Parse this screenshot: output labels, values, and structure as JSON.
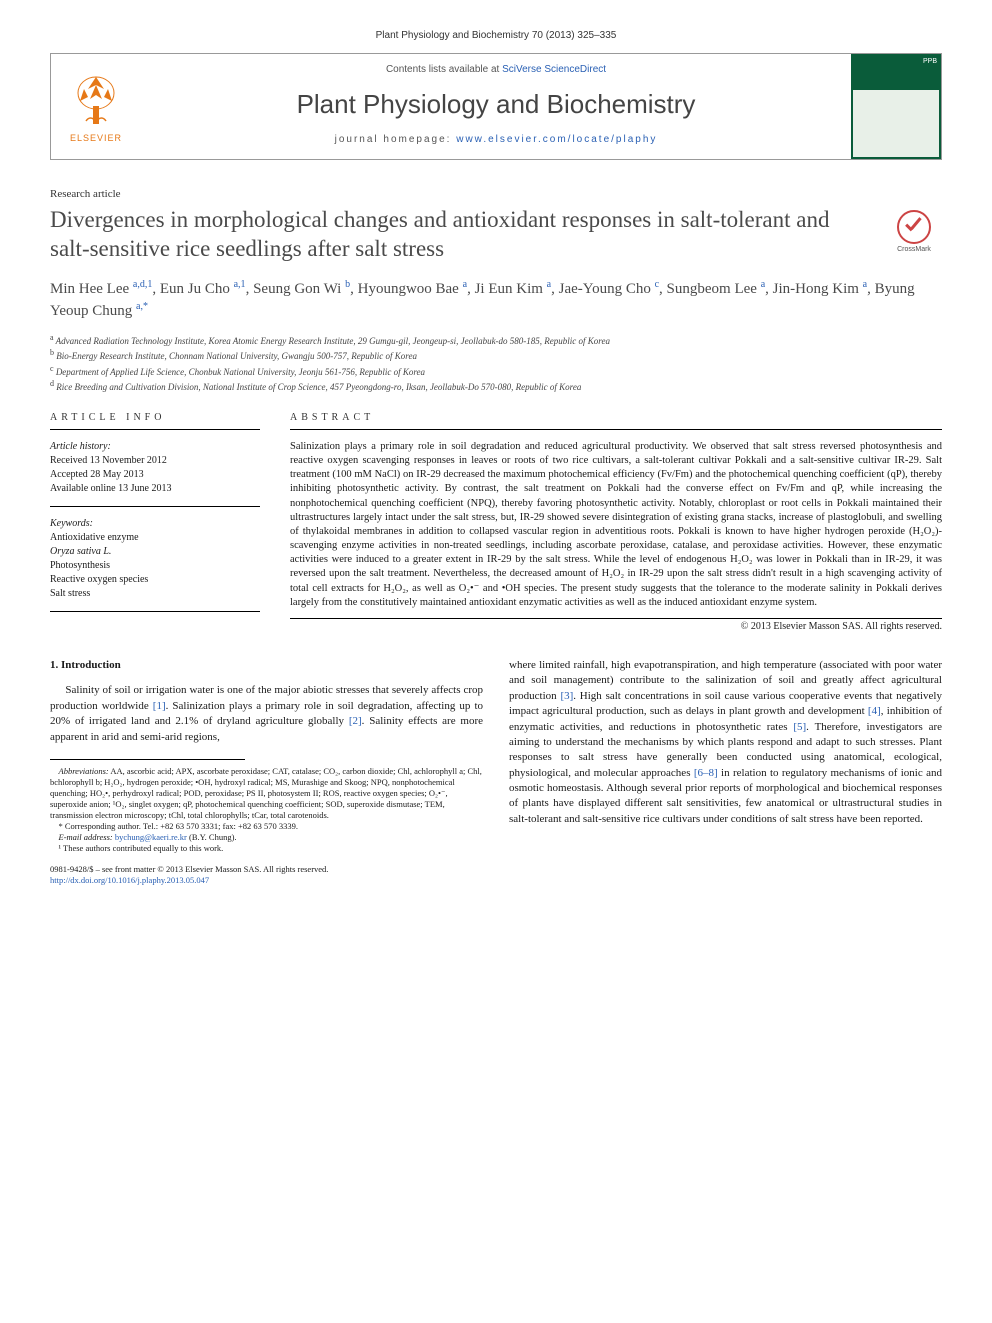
{
  "citation": "Plant Physiology and Biochemistry 70 (2013) 325–335",
  "header": {
    "contents_prefix": "Contents lists available at ",
    "contents_link": "SciVerse ScienceDirect",
    "journal": "Plant Physiology and Biochemistry",
    "homepage_prefix": "journal homepage: ",
    "homepage_url": "www.elsevier.com/locate/plaphy",
    "elsevier": "ELSEVIER",
    "cover_label": "PPB"
  },
  "article_type": "Research article",
  "title": "Divergences in morphological changes and antioxidant responses in salt-tolerant and salt-sensitive rice seedlings after salt stress",
  "crossmark": "CrossMark",
  "authors_html": "Min Hee Lee <sup>a,d,1</sup>, Eun Ju Cho <sup>a,1</sup>, Seung Gon Wi <sup>b</sup>, Hyoungwoo Bae <sup>a</sup>, Ji Eun Kim <sup>a</sup>, Jae-Young Cho <sup>c</sup>, Sungbeom Lee <sup>a</sup>, Jin-Hong Kim <sup>a</sup>, Byung Yeoup Chung <sup>a,*</sup>",
  "affiliations": {
    "a": "Advanced Radiation Technology Institute, Korea Atomic Energy Research Institute, 29 Gumgu-gil, Jeongeup-si, Jeollabuk-do 580-185, Republic of Korea",
    "b": "Bio-Energy Research Institute, Chonnam National University, Gwangju 500-757, Republic of Korea",
    "c": "Department of Applied Life Science, Chonbuk National University, Jeonju 561-756, Republic of Korea",
    "d": "Rice Breeding and Cultivation Division, National Institute of Crop Science, 457 Pyeongdong-ro, Iksan, Jeollabuk-Do 570-080, Republic of Korea"
  },
  "info": {
    "header": "article info",
    "history_label": "Article history:",
    "received": "Received 13 November 2012",
    "accepted": "Accepted 28 May 2013",
    "online": "Available online 13 June 2013",
    "keywords_label": "Keywords:",
    "keywords": [
      "Antioxidative enzyme",
      "Oryza sativa L.",
      "Photosynthesis",
      "Reactive oxygen species",
      "Salt stress"
    ]
  },
  "abstract": {
    "header": "abstract",
    "text": "Salinization plays a primary role in soil degradation and reduced agricultural productivity. We observed that salt stress reversed photosynthesis and reactive oxygen scavenging responses in leaves or roots of two rice cultivars, a salt-tolerant cultivar Pokkali and a salt-sensitive cultivar IR-29. Salt treatment (100 mM NaCl) on IR-29 decreased the maximum photochemical efficiency (Fv/Fm) and the photochemical quenching coefficient (qP), thereby inhibiting photosynthetic activity. By contrast, the salt treatment on Pokkali had the converse effect on Fv/Fm and qP, while increasing the nonphotochemical quenching coefficient (NPQ), thereby favoring photosynthetic activity. Notably, chloroplast or root cells in Pokkali maintained their ultrastructures largely intact under the salt stress, but, IR-29 showed severe disintegration of existing grana stacks, increase of plastoglobuli, and swelling of thylakoidal membranes in addition to collapsed vascular region in adventitious roots. Pokkali is known to have higher hydrogen peroxide (H₂O₂)-scavenging enzyme activities in non-treated seedlings, including ascorbate peroxidase, catalase, and peroxidase activities. However, these enzymatic activities were induced to a greater extent in IR-29 by the salt stress. While the level of endogenous H₂O₂ was lower in Pokkali than in IR-29, it was reversed upon the salt treatment. Nevertheless, the decreased amount of H₂O₂ in IR-29 upon the salt stress didn't result in a high scavenging activity of total cell extracts for H₂O₂, as well as O₂•⁻ and •OH species. The present study suggests that the tolerance to the moderate salinity in Pokkali derives largely from the constitutively maintained antioxidant enzymatic activities as well as the induced antioxidant enzyme system.",
    "copyright": "© 2013 Elsevier Masson SAS. All rights reserved."
  },
  "intro": {
    "heading": "1. Introduction",
    "col1": "Salinity of soil or irrigation water is one of the major abiotic stresses that severely affects crop production worldwide [1]. Salinization plays a primary role in soil degradation, affecting up to 20% of irrigated land and 2.1% of dryland agriculture globally [2]. Salinity effects are more apparent in arid and semi-arid regions,",
    "col2": "where limited rainfall, high evapotranspiration, and high temperature (associated with poor water and soil management) contribute to the salinization of soil and greatly affect agricultural production [3]. High salt concentrations in soil cause various cooperative events that negatively impact agricultural production, such as delays in plant growth and development [4], inhibition of enzymatic activities, and reductions in photosynthetic rates [5]. Therefore, investigators are aiming to understand the mechanisms by which plants respond and adapt to such stresses. Plant responses to salt stress have generally been conducted using anatomical, ecological, physiological, and molecular approaches [6–8] in relation to regulatory mechanisms of ionic and osmotic homeostasis. Although several prior reports of morphological and biochemical responses of plants have displayed different salt sensitivities, few anatomical or ultrastructural studies in salt-tolerant and salt-sensitive rice cultivars under conditions of salt stress have been reported."
  },
  "footnotes": {
    "abbrev_label": "Abbreviations:",
    "abbrev": " AA, ascorbic acid; APX, ascorbate peroxidase; CAT, catalase; CO₂, carbon dioxide; Chl, achlorophyll a; Chl, bchlorophyll b; H₂O₂, hydrogen peroxide; •OH, hydroxyl radical; MS, Murashige and Skoog; NPQ, nonphotochemical quenching; HO₂•, perhydroxyl radical; POD, peroxidase; PS II, photosystem II; ROS, reactive oxygen species; O₂•⁻, superoxide anion; ¹O₂, singlet oxygen; qP, photochemical quenching coefficient; SOD, superoxide dismutase; TEM, transmission electron microscopy; tChl, total chlorophylls; tCar, total carotenoids.",
    "corr": "* Corresponding author. Tel.: +82 63 570 3331; fax: +82 63 570 3339.",
    "email_label": "E-mail address: ",
    "email": "bychung@kaeri.re.kr",
    "email_suffix": " (B.Y. Chung).",
    "equal": "¹ These authors contributed equally to this work."
  },
  "doi": {
    "line1": "0981-9428/$ – see front matter © 2013 Elsevier Masson SAS. All rights reserved.",
    "line2": "http://dx.doi.org/10.1016/j.plaphy.2013.05.047"
  },
  "colors": {
    "link": "#2a60b4",
    "elsevier_orange": "#e67817",
    "cover_green": "#0a5c3a"
  }
}
